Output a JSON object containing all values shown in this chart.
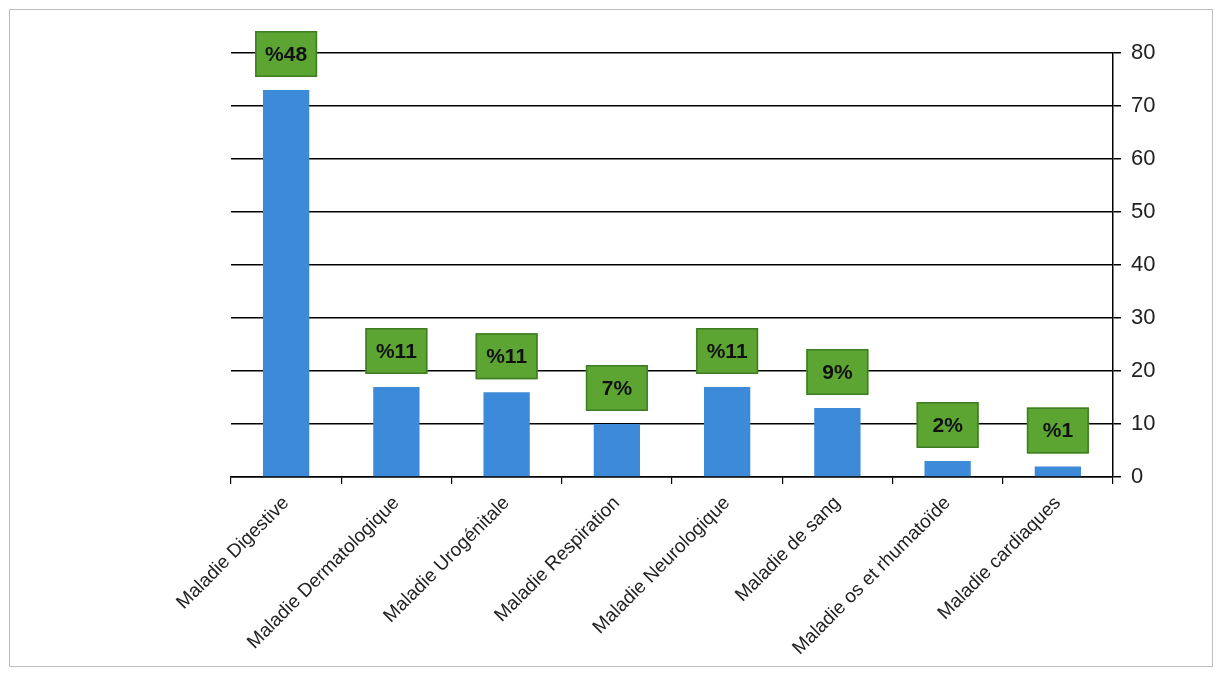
{
  "chart_data": {
    "type": "bar",
    "categories": [
      "Maladie Digestive",
      "Maladie Dermatologique",
      "Maladie Urogénitale",
      "Maladie Respiration",
      "Maladie Neurologique",
      "Maladie de sang",
      "Maladie os et rhumatoïde",
      "Maladie cardiaques"
    ],
    "values": [
      73,
      17,
      16,
      10,
      17,
      13,
      3,
      2
    ],
    "color": "#3c8ad8",
    "annotations": [
      {
        "text": "%48",
        "x": "Maladie Digestive",
        "y": 73
      },
      {
        "text": "%11",
        "x": "Maladie Dermatologique",
        "y": 17
      },
      {
        "text": "%11",
        "x": "Maladie Urogénitale",
        "y": 16
      },
      {
        "text": "7%",
        "x": "Maladie Respiration",
        "y": 10
      },
      {
        "text": "%11",
        "x": "Maladie Neurologique",
        "y": 17
      },
      {
        "text": "9%",
        "x": "Maladie de sang",
        "y": 13
      },
      {
        "text": "2%",
        "x": "Maladie os et rhumatoïde",
        "y": 3
      },
      {
        "text": "%1",
        "x": "Maladie cardiaques",
        "y": 2
      }
    ],
    "ylim": [
      0,
      80
    ],
    "yticks": [
      0,
      10,
      20,
      30,
      40,
      50,
      60,
      70,
      80
    ],
    "grid": "y",
    "legend": false
  }
}
